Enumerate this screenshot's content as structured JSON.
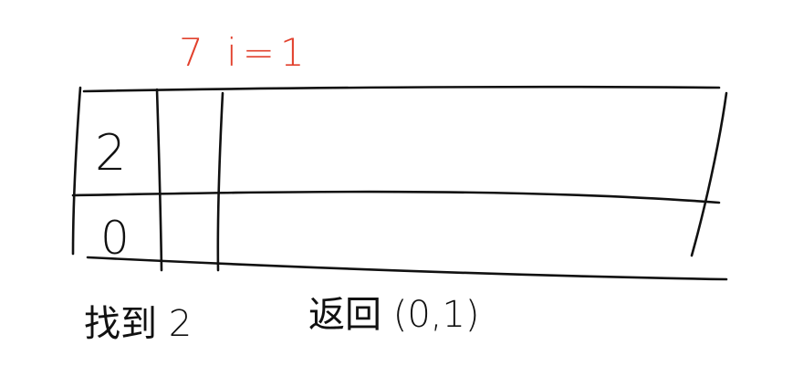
{
  "annotation": {
    "label": "7 i=1",
    "color": "#e2412d"
  },
  "table": {
    "rows": [
      {
        "cell": "2"
      },
      {
        "cell": "0"
      }
    ]
  },
  "footer": {
    "found_text": "找到 2",
    "return_text": "返回 (0,1)"
  },
  "ink_color": "#111111"
}
